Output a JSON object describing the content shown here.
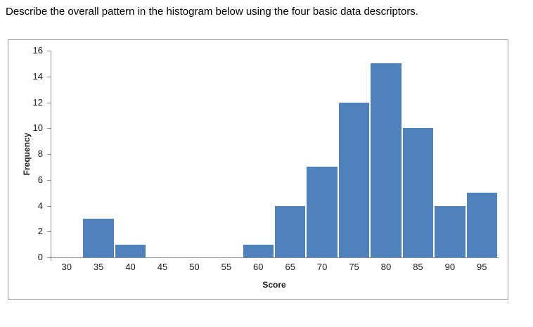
{
  "question": {
    "text": "Describe the overall pattern in the histogram below using the four basic data descriptors."
  },
  "chart_data": {
    "type": "bar",
    "subtype": "histogram",
    "title": "",
    "categories": [
      "30",
      "35",
      "40",
      "45",
      "50",
      "55",
      "60",
      "65",
      "70",
      "75",
      "80",
      "85",
      "90",
      "95"
    ],
    "values": [
      0,
      3,
      1,
      0,
      0,
      0,
      1,
      4,
      7,
      12,
      15,
      10,
      4,
      5
    ],
    "xlabel": "Score",
    "ylabel": "Frequency",
    "ylim": [
      0,
      16
    ],
    "yticks": [
      0,
      2,
      4,
      6,
      8,
      10,
      12,
      14,
      16
    ],
    "grid": "off",
    "legend_position": "none",
    "bar_color": "#4f81bd",
    "axis_color": "#8c8c8c",
    "chart_border_color": "#9b9b9b"
  }
}
